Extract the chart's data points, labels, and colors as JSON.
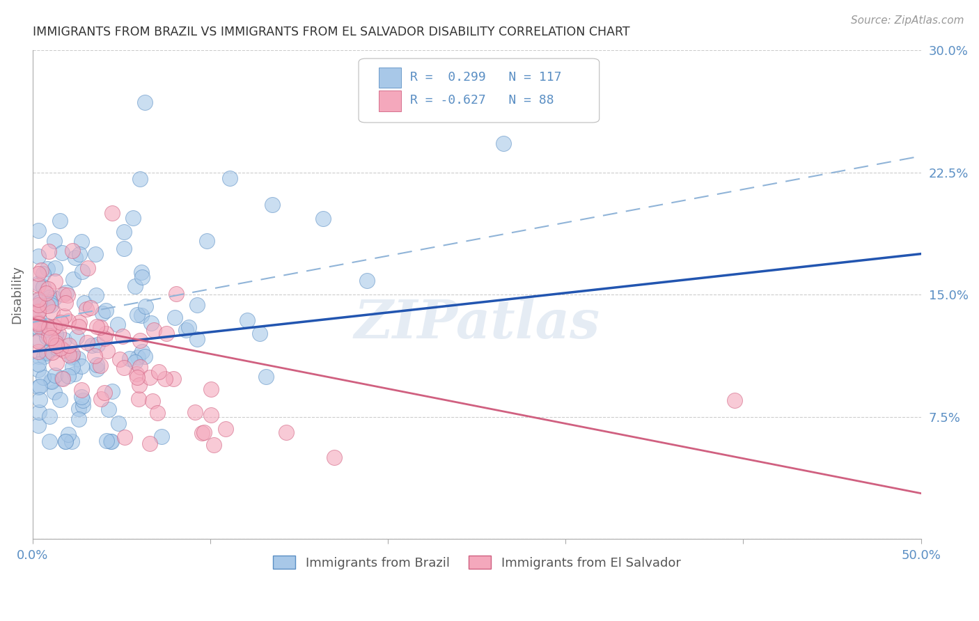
{
  "title": "IMMIGRANTS FROM BRAZIL VS IMMIGRANTS FROM EL SALVADOR DISABILITY CORRELATION CHART",
  "source": "Source: ZipAtlas.com",
  "ylabel": "Disability",
  "xlim": [
    0.0,
    0.5
  ],
  "ylim": [
    0.0,
    0.3
  ],
  "xtick_positions": [
    0.0,
    0.1,
    0.2,
    0.3,
    0.4,
    0.5
  ],
  "xtick_labels": [
    "0.0%",
    "",
    "",
    "",
    "",
    "50.0%"
  ],
  "ytick_positions": [
    0.0,
    0.075,
    0.15,
    0.225,
    0.3
  ],
  "ytick_labels_right": [
    "",
    "7.5%",
    "15.0%",
    "22.5%",
    "30.0%"
  ],
  "brazil_color": "#a8c8e8",
  "brazil_edge_color": "#5b8fc4",
  "el_salvador_color": "#f4a8bc",
  "el_salvador_edge_color": "#d06080",
  "brazil_R": 0.299,
  "brazil_N": 117,
  "el_salvador_R": -0.627,
  "el_salvador_N": 88,
  "brazil_line_color": "#2255b0",
  "el_salvador_line_color": "#d06080",
  "confidence_line_color": "#90b4d8",
  "legend_label_brazil": "Immigrants from Brazil",
  "legend_label_el_salvador": "Immigrants from El Salvador",
  "watermark": "ZIPatlas",
  "background_color": "#ffffff",
  "grid_color": "#cccccc",
  "title_color": "#333333",
  "tick_color": "#5b8fc4",
  "brazil_line_x0": 0.0,
  "brazil_line_y0": 0.115,
  "brazil_line_x1": 0.5,
  "brazil_line_y1": 0.175,
  "el_salvador_line_x0": 0.0,
  "el_salvador_line_y0": 0.135,
  "el_salvador_line_x1": 0.5,
  "el_salvador_line_y1": 0.028,
  "confidence_line_x0": 0.0,
  "confidence_line_y0": 0.133,
  "confidence_line_x1": 0.5,
  "confidence_line_y1": 0.235
}
